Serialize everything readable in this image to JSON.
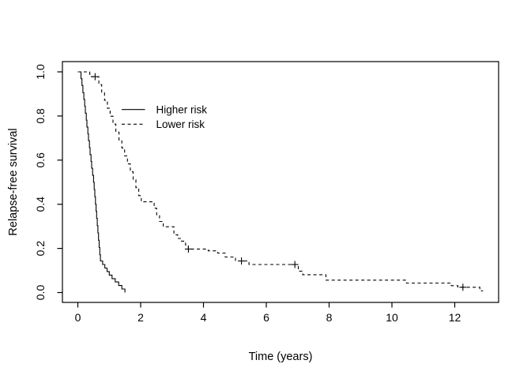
{
  "figure": {
    "background": "#ffffff",
    "foreground": "#000000"
  },
  "chart_data": {
    "type": "line",
    "subtype": "kaplan-meier-step",
    "title": "",
    "xlabel": "Time (years)",
    "ylabel": "Relapse-free survival",
    "xlim": [
      -0.5,
      13.4
    ],
    "ylim": [
      -0.04,
      1.04
    ],
    "grid": false,
    "box": true,
    "x_ticks": [
      "0",
      "2",
      "4",
      "6",
      "8",
      "10",
      "12"
    ],
    "x_tick_values": [
      0,
      2,
      4,
      6,
      8,
      10,
      12
    ],
    "y_ticks": [
      "0.0",
      "0.2",
      "0.4",
      "0.6",
      "0.8",
      "1.0"
    ],
    "y_tick_values": [
      0.0,
      0.2,
      0.4,
      0.6,
      0.8,
      1.0
    ],
    "legend": {
      "position": "inside-upper-left",
      "entries": [
        {
          "label": "Higher risk",
          "linestyle": "solid"
        },
        {
          "label": "Lower risk",
          "linestyle": "dashed"
        }
      ]
    },
    "series": [
      {
        "name": "Higher risk",
        "linestyle": "solid",
        "color": "#000000",
        "points": [
          [
            0.0,
            1.0
          ],
          [
            0.1,
            0.969
          ],
          [
            0.13,
            0.938
          ],
          [
            0.16,
            0.906
          ],
          [
            0.19,
            0.875
          ],
          [
            0.22,
            0.844
          ],
          [
            0.24,
            0.813
          ],
          [
            0.27,
            0.781
          ],
          [
            0.29,
            0.75
          ],
          [
            0.32,
            0.719
          ],
          [
            0.34,
            0.688
          ],
          [
            0.37,
            0.656
          ],
          [
            0.39,
            0.625
          ],
          [
            0.42,
            0.594
          ],
          [
            0.44,
            0.563
          ],
          [
            0.47,
            0.531
          ],
          [
            0.5,
            0.5
          ],
          [
            0.52,
            0.467
          ],
          [
            0.54,
            0.434
          ],
          [
            0.56,
            0.401
          ],
          [
            0.58,
            0.368
          ],
          [
            0.6,
            0.336
          ],
          [
            0.62,
            0.303
          ],
          [
            0.64,
            0.27
          ],
          [
            0.66,
            0.237
          ],
          [
            0.68,
            0.204
          ],
          [
            0.7,
            0.171
          ],
          [
            0.72,
            0.143
          ],
          [
            0.79,
            0.127
          ],
          [
            0.86,
            0.111
          ],
          [
            0.93,
            0.095
          ],
          [
            1.0,
            0.079
          ],
          [
            1.09,
            0.063
          ],
          [
            1.19,
            0.048
          ],
          [
            1.3,
            0.032
          ],
          [
            1.4,
            0.016
          ],
          [
            1.5,
            0.0
          ]
        ],
        "censor_marks": []
      },
      {
        "name": "Lower risk",
        "linestyle": "dashed",
        "color": "#000000",
        "points": [
          [
            0.0,
            1.0
          ],
          [
            0.38,
            0.978
          ],
          [
            0.67,
            0.942
          ],
          [
            0.76,
            0.906
          ],
          [
            0.85,
            0.871
          ],
          [
            0.94,
            0.835
          ],
          [
            1.03,
            0.799
          ],
          [
            1.12,
            0.763
          ],
          [
            1.21,
            0.727
          ],
          [
            1.31,
            0.691
          ],
          [
            1.4,
            0.655
          ],
          [
            1.49,
            0.619
          ],
          [
            1.58,
            0.583
          ],
          [
            1.67,
            0.547
          ],
          [
            1.76,
            0.511
          ],
          [
            1.85,
            0.475
          ],
          [
            1.94,
            0.439
          ],
          [
            2.02,
            0.411
          ],
          [
            2.43,
            0.382
          ],
          [
            2.51,
            0.352
          ],
          [
            2.6,
            0.322
          ],
          [
            2.72,
            0.298
          ],
          [
            3.06,
            0.262
          ],
          [
            3.18,
            0.245
          ],
          [
            3.3,
            0.233
          ],
          [
            3.43,
            0.215
          ],
          [
            3.52,
            0.197
          ],
          [
            4.15,
            0.189
          ],
          [
            4.45,
            0.179
          ],
          [
            4.69,
            0.161
          ],
          [
            5.02,
            0.143
          ],
          [
            5.45,
            0.127
          ],
          [
            7.02,
            0.097
          ],
          [
            7.16,
            0.081
          ],
          [
            7.9,
            0.056
          ],
          [
            10.46,
            0.043
          ],
          [
            11.89,
            0.031
          ],
          [
            12.1,
            0.024
          ],
          [
            12.8,
            0.008
          ],
          [
            12.9,
            0.008
          ]
        ],
        "censor_marks": [
          [
            0.55,
            0.978
          ],
          [
            3.52,
            0.197
          ],
          [
            5.21,
            0.143
          ],
          [
            6.91,
            0.127
          ],
          [
            12.26,
            0.024
          ]
        ]
      }
    ]
  }
}
